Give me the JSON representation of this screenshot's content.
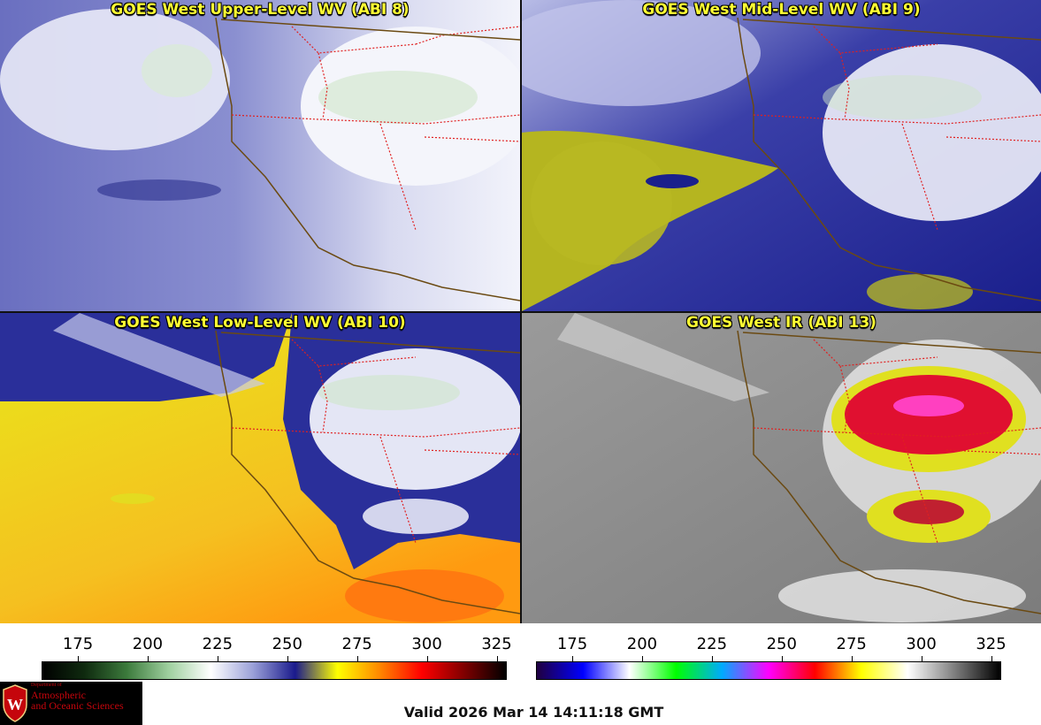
{
  "panels": [
    {
      "id": "upper",
      "title": "GOES West Upper-Level WV (ABI 8)"
    },
    {
      "id": "mid",
      "title": "GOES West Mid-Level WV (ABI 9)"
    },
    {
      "id": "low",
      "title": "GOES West Low-Level WV (ABI 10)"
    },
    {
      "id": "ir",
      "title": "GOES West IR (ABI 13)"
    }
  ],
  "colorbar_wv": {
    "tick_labels": [
      "175",
      "200",
      "225",
      "250",
      "275",
      "300",
      "325"
    ],
    "tick_values": [
      175,
      200,
      225,
      250,
      275,
      300,
      325
    ],
    "range": [
      162,
      328
    ],
    "stops": [
      "#000000",
      "#0f2a0f",
      "#3c7a3c",
      "#9fd09f",
      "#ffffff",
      "#9aa0d8",
      "#1a1a8c",
      "#ffff00",
      "#ff8800",
      "#ff0000",
      "#800000",
      "#000000"
    ]
  },
  "colorbar_ir": {
    "tick_labels": [
      "175",
      "200",
      "225",
      "250",
      "275",
      "300",
      "325"
    ],
    "tick_values": [
      175,
      200,
      225,
      250,
      275,
      300,
      325
    ],
    "range": [
      162,
      328
    ],
    "stops": [
      "#200040",
      "#0000ff",
      "#ffffff",
      "#00ff00",
      "#00aaff",
      "#ff00ff",
      "#ff0000",
      "#ffff00",
      "#ffffff",
      "#808080",
      "#000000"
    ]
  },
  "logo": {
    "dept": "Department of",
    "line1": "Atmospheric",
    "line2": "and Oceanic Sciences",
    "seal_letter": "W"
  },
  "valid_time": "Valid 2026 Mar 14 14:11:18 GMT"
}
